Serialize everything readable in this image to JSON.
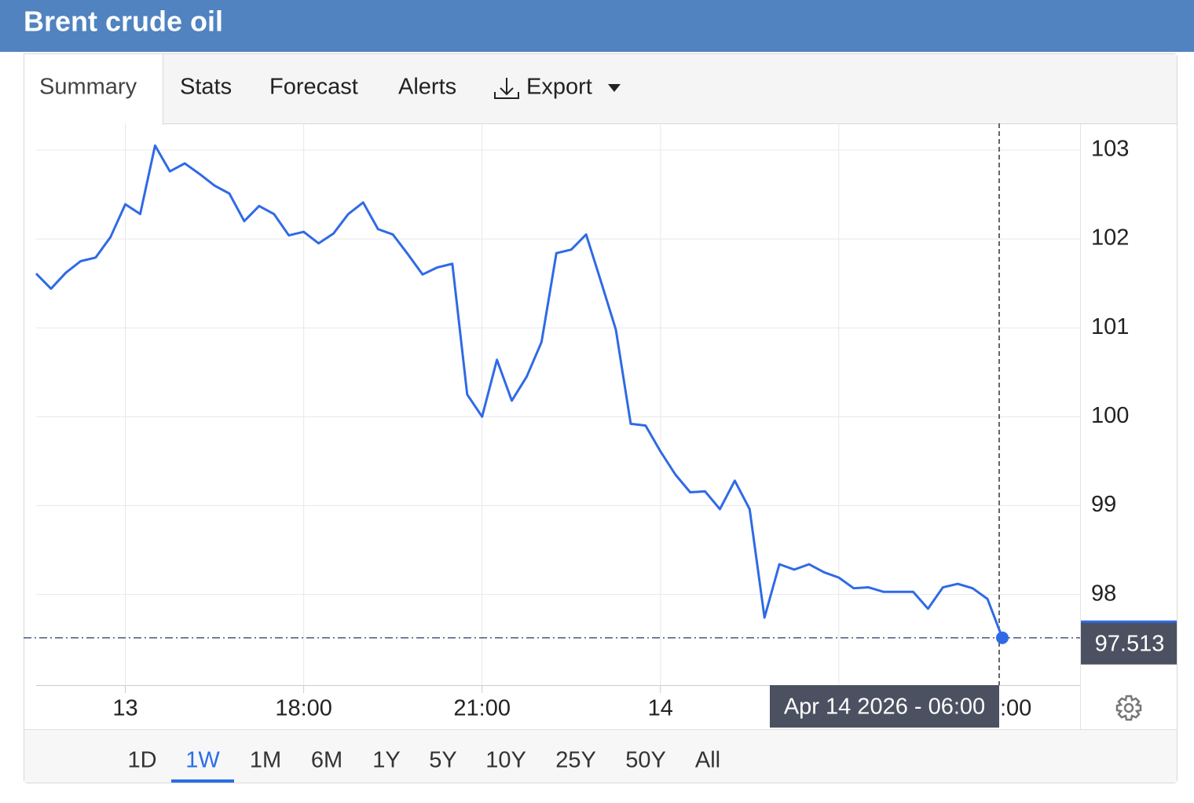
{
  "header": {
    "title": "Brent crude oil"
  },
  "tabs": [
    "Summary",
    "Stats",
    "Forecast",
    "Alerts",
    "Export"
  ],
  "chart_data": {
    "type": "line",
    "color": "#2f6ae6",
    "values": [
      101.61,
      101.44,
      101.62,
      101.75,
      101.79,
      102.02,
      102.39,
      102.28,
      103.05,
      102.76,
      102.85,
      102.73,
      102.6,
      102.51,
      102.2,
      102.37,
      102.28,
      102.04,
      102.08,
      101.95,
      102.06,
      102.28,
      102.41,
      102.11,
      102.05,
      101.83,
      101.6,
      101.68,
      101.72,
      100.25,
      100.0,
      100.64,
      100.18,
      100.45,
      100.84,
      101.84,
      101.88,
      102.05,
      101.52,
      100.98,
      99.92,
      99.9,
      99.61,
      99.35,
      99.15,
      99.16,
      98.96,
      99.28,
      98.96,
      97.74,
      98.34,
      98.28,
      98.34,
      98.25,
      98.19,
      98.07,
      98.08,
      98.03,
      98.03,
      98.03,
      97.84,
      98.08,
      98.12,
      98.07,
      97.95,
      97.513
    ],
    "ylim": [
      96.98,
      103.3
    ],
    "yticks": [
      98,
      99,
      100,
      101,
      102,
      103
    ],
    "xticks": [
      {
        "value": 6,
        "label": "13"
      },
      {
        "value": 18,
        "label": "18:00"
      },
      {
        "value": 30,
        "label": "21:00"
      },
      {
        "value": 42,
        "label": "14"
      },
      {
        "value": 54,
        "label": ":00"
      }
    ],
    "tooltip": "Apr 14 2026 - 06:00",
    "grid": true
  },
  "range_buttons": [
    "1D",
    "1W",
    "1M",
    "6M",
    "1Y",
    "5Y",
    "10Y",
    "25Y",
    "50Y",
    "All"
  ]
}
